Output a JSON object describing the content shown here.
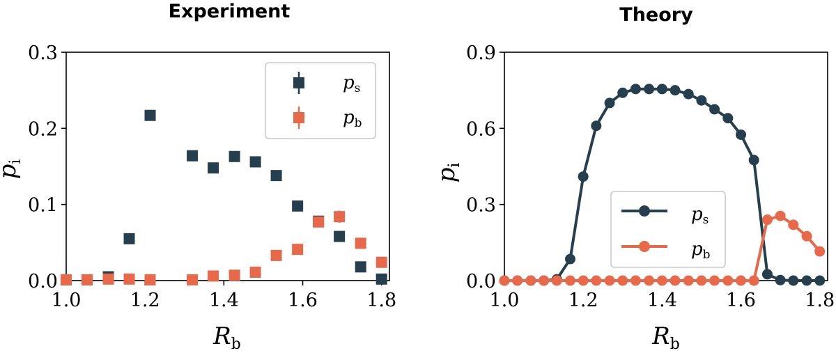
{
  "colors": {
    "ps": "#253f4f",
    "pb": "#e8694a"
  },
  "chart_data": [
    {
      "type": "scatter",
      "title": "Experiment",
      "xlabel": "R_b",
      "xlabel_main": "R",
      "xlabel_sub": "b",
      "ylabel": "p_i",
      "ylabel_main": "p",
      "ylabel_sub": "i",
      "xlim": [
        1.0,
        1.82
      ],
      "ylim": [
        0.0,
        0.3
      ],
      "xticks": [
        1.0,
        1.2,
        1.4,
        1.6,
        1.8
      ],
      "xtick_labels": [
        "1.0",
        "1.2",
        "1.4",
        "1.6",
        "1.8"
      ],
      "yticks": [
        0.0,
        0.1,
        0.2,
        0.3
      ],
      "ytick_labels": [
        "0.0",
        "0.1",
        "0.2",
        "0.3"
      ],
      "legend_position": "top-right",
      "series": [
        {
          "name": "p_s",
          "label_main": "p",
          "label_sub": "s",
          "color_key": "ps",
          "x": [
            1.0,
            1.053,
            1.107,
            1.16,
            1.213,
            1.32,
            1.373,
            1.427,
            1.48,
            1.533,
            1.587,
            1.64,
            1.693,
            1.747,
            1.8
          ],
          "values": [
            0.001,
            0.001,
            0.005,
            0.055,
            0.217,
            0.164,
            0.148,
            0.163,
            0.156,
            0.138,
            0.098,
            0.078,
            0.058,
            0.018,
            0.002
          ],
          "errors": [
            0.001,
            0.001,
            0.002,
            0.003,
            0.004,
            0.004,
            0.003,
            0.004,
            0.005,
            0.004,
            0.003,
            0.004,
            0.003,
            0.002,
            0.001
          ]
        },
        {
          "name": "p_b",
          "label_main": "p",
          "label_sub": "b",
          "color_key": "pb",
          "x": [
            1.0,
            1.053,
            1.107,
            1.16,
            1.213,
            1.32,
            1.373,
            1.427,
            1.48,
            1.533,
            1.587,
            1.64,
            1.693,
            1.747,
            1.8
          ],
          "values": [
            0.001,
            0.001,
            0.002,
            0.002,
            0.001,
            0.001,
            0.006,
            0.007,
            0.011,
            0.033,
            0.041,
            0.077,
            0.084,
            0.049,
            0.024
          ],
          "errors": [
            0.001,
            0.001,
            0.001,
            0.001,
            0.001,
            0.001,
            0.003,
            0.003,
            0.003,
            0.004,
            0.004,
            0.006,
            0.008,
            0.005,
            0.004
          ]
        }
      ]
    },
    {
      "type": "line",
      "title": "Theory",
      "xlabel": "R_b",
      "xlabel_main": "R",
      "xlabel_sub": "b",
      "ylabel": "p_i",
      "ylabel_main": "p",
      "ylabel_sub": "i",
      "xlim": [
        1.0,
        1.82
      ],
      "ylim": [
        0.0,
        0.9
      ],
      "xticks": [
        1.0,
        1.2,
        1.4,
        1.6,
        1.8
      ],
      "xtick_labels": [
        "1.0",
        "1.2",
        "1.4",
        "1.6",
        "1.8"
      ],
      "yticks": [
        0.0,
        0.3,
        0.6,
        0.9
      ],
      "ytick_labels": [
        "0.0",
        "0.3",
        "0.6",
        "0.9"
      ],
      "legend_position": "lower-center",
      "series": [
        {
          "name": "p_s",
          "label_main": "p",
          "label_sub": "s",
          "color_key": "ps",
          "x": [
            1.0,
            1.033,
            1.067,
            1.1,
            1.133,
            1.167,
            1.2,
            1.233,
            1.267,
            1.3,
            1.333,
            1.367,
            1.4,
            1.433,
            1.467,
            1.5,
            1.533,
            1.567,
            1.6,
            1.633,
            1.667,
            1.7,
            1.733,
            1.767,
            1.8
          ],
          "values": [
            0.0,
            0.0,
            0.0,
            0.0,
            0.005,
            0.085,
            0.41,
            0.61,
            0.7,
            0.74,
            0.755,
            0.755,
            0.755,
            0.75,
            0.735,
            0.71,
            0.675,
            0.64,
            0.575,
            0.475,
            0.025,
            0.002,
            0.0,
            0.0,
            0.0
          ]
        },
        {
          "name": "p_b",
          "label_main": "p",
          "label_sub": "b",
          "color_key": "pb",
          "x": [
            1.0,
            1.033,
            1.067,
            1.1,
            1.133,
            1.167,
            1.2,
            1.233,
            1.267,
            1.3,
            1.333,
            1.367,
            1.4,
            1.433,
            1.467,
            1.5,
            1.533,
            1.567,
            1.6,
            1.633,
            1.667,
            1.7,
            1.733,
            1.767,
            1.8
          ],
          "values": [
            0.0,
            0.0,
            0.0,
            0.0,
            0.0,
            0.0,
            0.0,
            0.0,
            0.0,
            0.0,
            0.0,
            0.0,
            0.0,
            0.0,
            0.0,
            0.0,
            0.0,
            0.0,
            0.0,
            0.0,
            0.24,
            0.255,
            0.22,
            0.175,
            0.115
          ]
        }
      ]
    }
  ]
}
